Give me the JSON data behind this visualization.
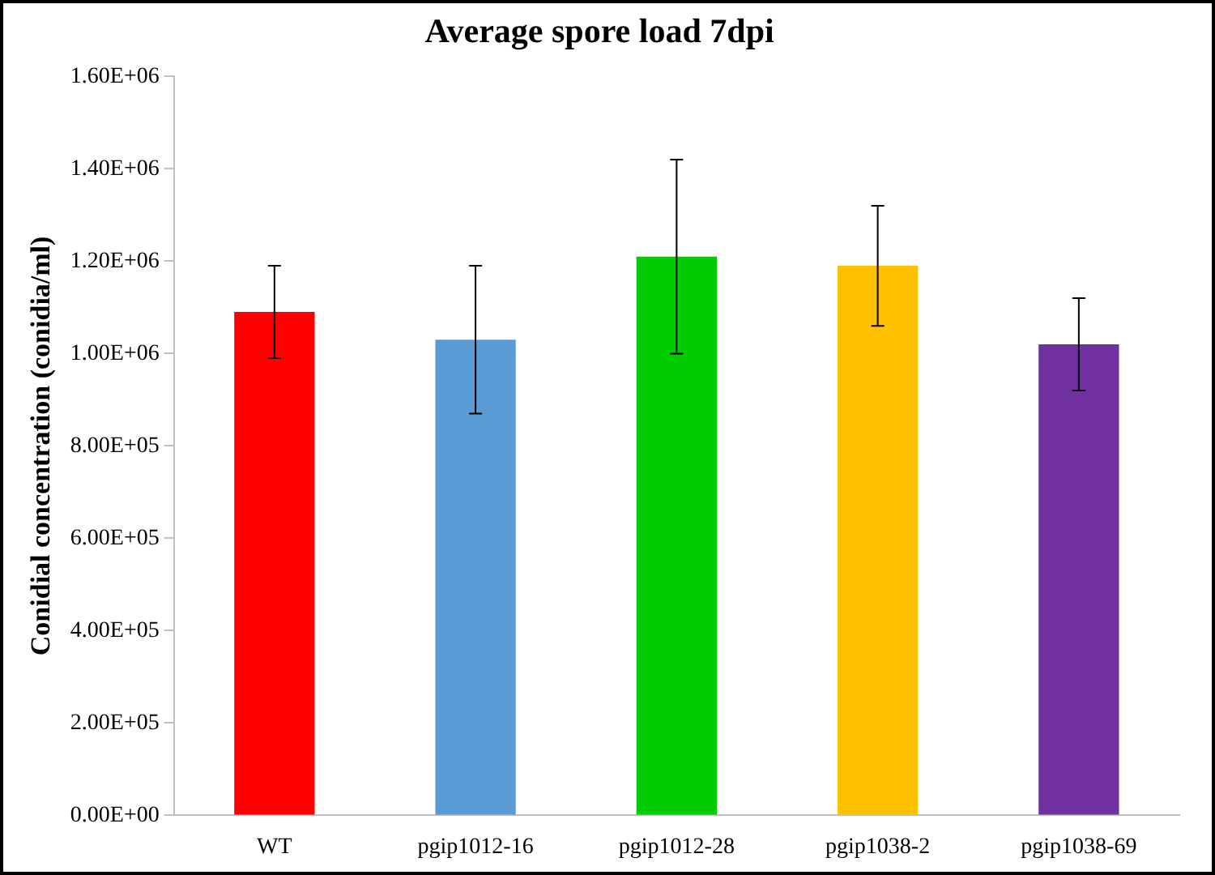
{
  "chart_data": {
    "type": "bar",
    "title": "Average spore load 7dpi",
    "ylabel": "Conidial concentration (conidia/ml)",
    "categories": [
      "WT",
      "pgip1012-16",
      "pgip1012-28",
      "pgip1038-2",
      "pgip1038-69"
    ],
    "values": [
      1090000,
      1030000,
      1210000,
      1190000,
      1020000
    ],
    "colors": [
      "#ff0000",
      "#5b9bd5",
      "#00cc00",
      "#ffc000",
      "#7030a0"
    ],
    "errors": [
      100000,
      160000,
      210000,
      130000,
      100000
    ],
    "ylim": [
      0,
      1600000
    ],
    "yticks": [
      {
        "value": 0,
        "label": "0.00E+00"
      },
      {
        "value": 200000,
        "label": "2.00E+05"
      },
      {
        "value": 400000,
        "label": "4.00E+05"
      },
      {
        "value": 600000,
        "label": "6.00E+05"
      },
      {
        "value": 800000,
        "label": "8.00E+05"
      },
      {
        "value": 1000000,
        "label": "1.00E+06"
      },
      {
        "value": 1200000,
        "label": "1.20E+06"
      },
      {
        "value": 1400000,
        "label": "1.40E+06"
      },
      {
        "value": 1600000,
        "label": "1.60E+06"
      }
    ],
    "grid": false,
    "legend": false
  }
}
